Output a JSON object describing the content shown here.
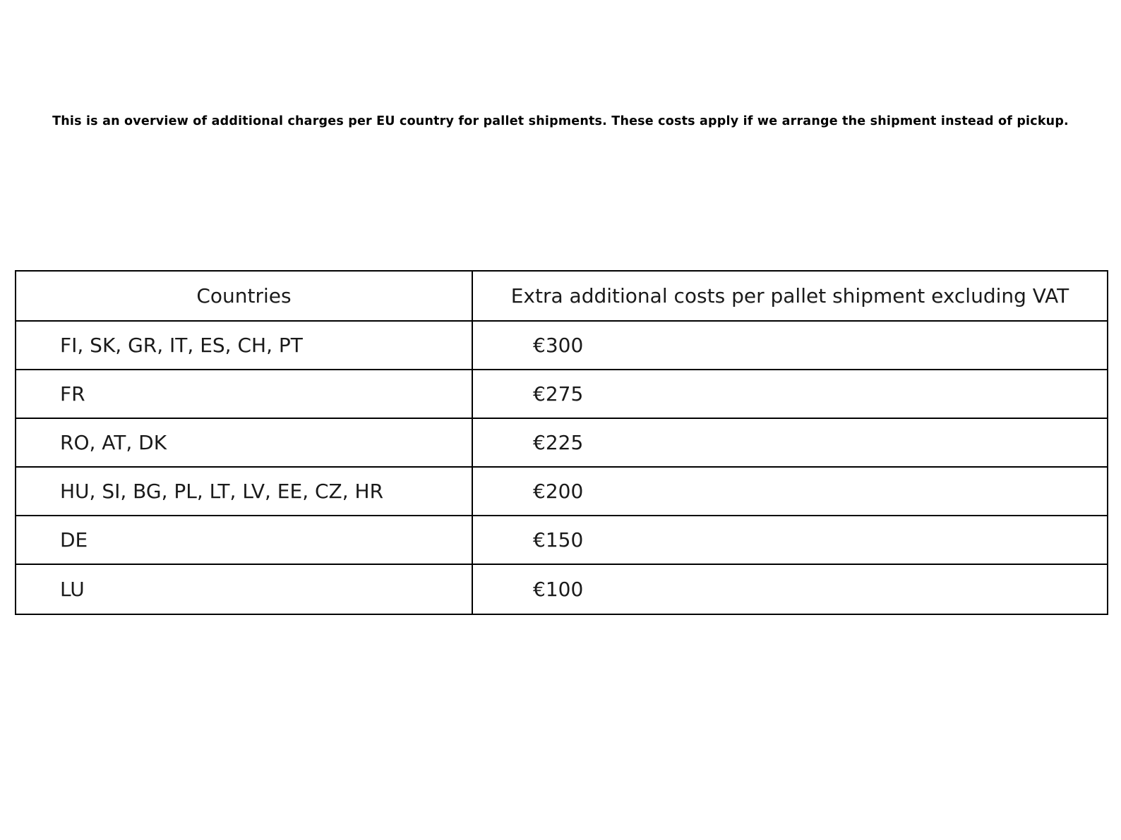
{
  "page": {
    "description": "This is an overview of additional charges per EU country for pallet shipments. These costs apply if we arrange the shipment instead of pickup."
  },
  "table": {
    "headers": {
      "countries": "Countries",
      "costs": "Extra additional costs per pallet shipment excluding VAT"
    },
    "rows": [
      {
        "countries": "FI, SK, GR, IT, ES, CH, PT",
        "cost": "€300"
      },
      {
        "countries": "FR",
        "cost": "€275"
      },
      {
        "countries": "RO, AT, DK",
        "cost": "€225"
      },
      {
        "countries": "HU, SI, BG, PL, LT, LV, EE, CZ, HR",
        "cost": "€200"
      },
      {
        "countries": "DE",
        "cost": "€150"
      },
      {
        "countries": "LU",
        "cost": "€100"
      }
    ],
    "colors": {
      "border": "#000000",
      "text": "#1a1a1a",
      "title_text": "#000000",
      "background": "#ffffff"
    }
  }
}
